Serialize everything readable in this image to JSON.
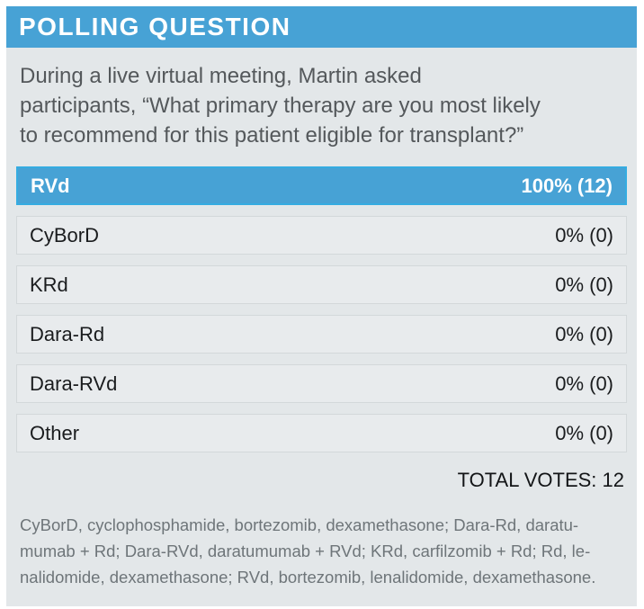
{
  "header": {
    "title": "POLLING QUESTION"
  },
  "question": {
    "full_text": "During a live virtual meeting, Martin asked participants, “What primary therapy are you most likely to recommend for this patient eligible for transplant?”",
    "lines": [
      "During a live virtual meeting, Martin asked",
      "participants, “What primary therapy are you most likely",
      "to recommend for this patient eligible for transplant?”"
    ]
  },
  "chart_data": {
    "type": "bar",
    "title": "POLLING QUESTION",
    "categories": [
      "RVd",
      "CyBorD",
      "KRd",
      "Dara-Rd",
      "Dara-RVd",
      "Other"
    ],
    "values": [
      100,
      0,
      0,
      0,
      0,
      0
    ],
    "vote_counts": [
      12,
      0,
      0,
      0,
      0,
      0
    ],
    "xlim": [
      0,
      100
    ],
    "unit": "percent"
  },
  "poll": {
    "options": [
      {
        "label": "RVd",
        "percent": 100,
        "votes": 12,
        "result_text": "100% (12)"
      },
      {
        "label": "CyBorD",
        "percent": 0,
        "votes": 0,
        "result_text": "0% (0)"
      },
      {
        "label": "KRd",
        "percent": 0,
        "votes": 0,
        "result_text": "0% (0)"
      },
      {
        "label": "Dara-Rd",
        "percent": 0,
        "votes": 0,
        "result_text": "0% (0)"
      },
      {
        "label": "Dara-RVd",
        "percent": 0,
        "votes": 0,
        "result_text": "0% (0)"
      },
      {
        "label": "Other",
        "percent": 0,
        "votes": 0,
        "result_text": "0% (0)"
      }
    ],
    "total_votes_label": "TOTAL VOTES: 12"
  },
  "footnote": {
    "lines": [
      "CyBorD, cyclophosphamide, bortezomib, dexamethasone; Dara-Rd, daratu-",
      "mumab + Rd; Dara-RVd, daratumumab + RVd; KRd, carfilzomib + Rd; Rd, le-",
      "nalidomide, dexamethasone; RVd, bortezomib, lenalidomide, dexamethasone."
    ]
  },
  "colors": {
    "accent_blue": "#47a2d5",
    "leader_border_blue": "#35ace1",
    "body_bg": "#e3e7e9",
    "row_bg": "#e8ebed",
    "row_border": "#d3d8da",
    "question_text": "#54585b",
    "footnote_text": "#6e7579",
    "row_text": "#1a1c1e",
    "header_text": "#ffffff"
  }
}
